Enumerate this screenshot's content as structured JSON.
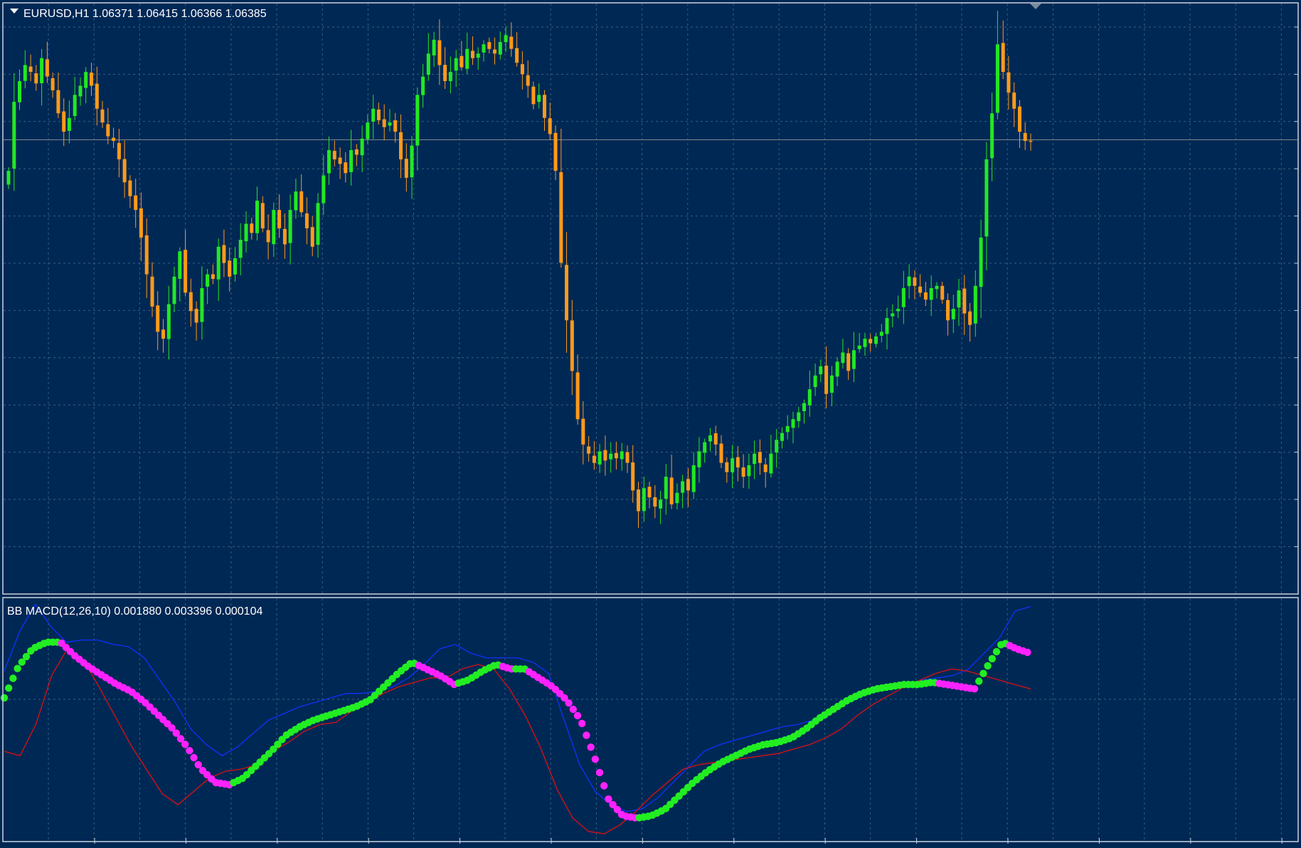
{
  "main_panel": {
    "symbol_line": "EURUSD,H1  1.06371 1.06415 1.06366 1.06385",
    "series": [
      "1.06371",
      "1.06415",
      "1.06366",
      "1.06385"
    ]
  },
  "indicator_panel": {
    "label": "BB MACD(12,26,10) 0.001880 0.003396 0.000104"
  },
  "colors": {
    "background": "#002855",
    "grid": "#3a5f7a",
    "frame": "#c9d3dc",
    "bull_candle": "#22e822",
    "bear_candle": "#ff9a1a",
    "macd_up": "#22ee22",
    "macd_down": "#ff22ff",
    "upper_band": "#1030ff",
    "lower_band": "#dd1010",
    "current_price_line": "#7a8a8a",
    "text": "#ffffff"
  },
  "chart_data": [
    {
      "type": "candlestick",
      "symbol": "EURUSD",
      "timeframe": "H1",
      "last_ohlc": {
        "open": 1.06371,
        "high": 1.06415,
        "low": 1.06366,
        "close": 1.06385
      },
      "ylim": [
        1.0445,
        1.069
      ],
      "close": [
        1.0625,
        1.0655,
        1.0664,
        1.0671,
        1.0668,
        1.0663,
        1.0674,
        1.0666,
        1.066,
        1.065,
        1.0642,
        1.0648,
        1.0658,
        1.0662,
        1.0668,
        1.0662,
        1.0652,
        1.0646,
        1.064,
        1.0638,
        1.063,
        1.062,
        1.0614,
        1.0608,
        1.0596,
        1.058,
        1.0566,
        1.0555,
        1.0552,
        1.0567,
        1.0579,
        1.059,
        1.0572,
        1.0564,
        1.0559,
        1.0574,
        1.058,
        1.0578,
        1.0592,
        1.0585,
        1.0579,
        1.0587,
        1.0595,
        1.0602,
        1.0598,
        1.0612,
        1.06,
        1.0594,
        1.0608,
        1.06,
        1.0593,
        1.0608,
        1.0616,
        1.0607,
        1.06,
        1.0592,
        1.0611,
        1.0623,
        1.0634,
        1.063,
        1.0628,
        1.0624,
        1.0634,
        1.0632,
        1.0639,
        1.0646,
        1.0652,
        1.0647,
        1.0644,
        1.0646,
        1.0642,
        1.063,
        1.0622,
        1.0636,
        1.0658,
        1.0666,
        1.0676,
        1.0682,
        1.0671,
        1.0664,
        1.0668,
        1.0674,
        1.067,
        1.0678,
        1.0674,
        1.0676,
        1.068,
        1.0678,
        1.0676,
        1.0681,
        1.0684,
        1.0678,
        1.0672,
        1.0667,
        1.0662,
        1.0654,
        1.0658,
        1.0648,
        1.0641,
        1.0625,
        1.0585,
        1.056,
        1.0538,
        1.0517,
        1.0506,
        1.0502,
        1.0498,
        1.0503,
        1.0499,
        1.0502,
        1.05,
        1.0503,
        1.0498,
        1.0486,
        1.0477,
        1.0487,
        1.0483,
        1.0479,
        1.0482,
        1.0492,
        1.048,
        1.0485,
        1.049,
        1.0486,
        1.0497,
        1.0503,
        1.0507,
        1.051,
        1.0506,
        1.0498,
        1.0494,
        1.05,
        1.0496,
        1.0492,
        1.0497,
        1.0502,
        1.0498,
        1.0494,
        1.0502,
        1.0508,
        1.0511,
        1.0514,
        1.0517,
        1.052,
        1.0524,
        1.053,
        1.0536,
        1.054,
        1.0528,
        1.0536,
        1.0542,
        1.0546,
        1.0538,
        1.0547,
        1.0549,
        1.0552,
        1.055,
        1.0553,
        1.0555,
        1.0561,
        1.0563,
        1.0565,
        1.0574,
        1.0579,
        1.0575,
        1.0572,
        1.0569,
        1.0574,
        1.0575,
        1.0569,
        1.056,
        1.0565,
        1.0573,
        1.0563,
        1.0558,
        1.0575,
        1.0596,
        1.063,
        1.065,
        1.068,
        1.0668,
        1.0659,
        1.0652,
        1.0642,
        1.0638,
        1.0638
      ]
    },
    {
      "type": "line",
      "title": "BB MACD(12,26,10)",
      "values": {
        "macd": 0.00188,
        "upper_band": 0.003396,
        "lower_band": 0.000104
      },
      "ylim": [
        -0.0024,
        0.0076
      ],
      "series": [
        {
          "name": "",
          "role": "macd",
          "values": [
            0.0038,
            0.0052,
            0.006,
            0.0063,
            0.0063,
            0.0057,
            0.0052,
            0.0048,
            0.0044,
            0.0041,
            0.0036,
            0.003,
            0.0024,
            0.0016,
            0.0006,
            0.0,
            -0.0001,
            0.0002,
            0.0008,
            0.0014,
            0.0021,
            0.0025,
            0.0028,
            0.003,
            0.0032,
            0.0034,
            0.0037,
            0.0043,
            0.0049,
            0.0054,
            0.0051,
            0.0048,
            0.0044,
            0.0046,
            0.005,
            0.0053,
            0.0051,
            0.0051,
            0.0047,
            0.0043,
            0.0037,
            0.0028,
            0.0011,
            -0.0008,
            -0.0015,
            -0.0016,
            -0.0015,
            -0.0012,
            -0.0006,
            0.0,
            0.0005,
            0.0009,
            0.0012,
            0.0015,
            0.0017,
            0.0018,
            0.002,
            0.0024,
            0.0029,
            0.0033,
            0.0037,
            0.004,
            0.0042,
            0.0043,
            0.0044,
            0.0044,
            0.0045,
            0.0044,
            0.0043,
            0.0042,
            0.0053,
            0.0063,
            0.006,
            0.0058
          ]
        },
        {
          "name": "",
          "role": "upper_band",
          "values": [
            0.005,
            0.0068,
            0.008,
            0.007,
            0.0063,
            0.0064,
            0.0064,
            0.0062,
            0.0061,
            0.0056,
            0.0046,
            0.0036,
            0.0024,
            0.0017,
            0.0012,
            0.0016,
            0.0022,
            0.0028,
            0.0031,
            0.0034,
            0.0036,
            0.0038,
            0.004,
            0.004,
            0.0041,
            0.0043,
            0.0047,
            0.0053,
            0.006,
            0.0062,
            0.0058,
            0.0056,
            0.0056,
            0.0056,
            0.0054,
            0.0049,
            0.0028,
            0.0008,
            -0.0004,
            -0.001,
            -0.0013,
            -0.0012,
            -0.0007,
            0.0,
            0.0007,
            0.0014,
            0.0017,
            0.0019,
            0.0021,
            0.0023,
            0.0025,
            0.0026,
            0.0028,
            0.0031,
            0.0035,
            0.0038,
            0.0041,
            0.0043,
            0.0044,
            0.0046,
            0.0047,
            0.0048,
            0.0051,
            0.0058,
            0.0065,
            0.0077,
            0.0079
          ]
        },
        {
          "name": "",
          "role": "lower_band",
          "values": [
            0.0014,
            0.0012,
            0.0026,
            0.0048,
            0.006,
            0.0055,
            0.0043,
            0.003,
            0.0017,
            0.0006,
            -0.0005,
            -0.001,
            -0.0004,
            0.0002,
            0.0005,
            0.0006,
            0.0008,
            0.0014,
            0.0018,
            0.0023,
            0.0026,
            0.0027,
            0.0032,
            0.0036,
            0.004,
            0.0043,
            0.0045,
            0.0047,
            0.0047,
            0.0051,
            0.0053,
            0.0051,
            0.0042,
            0.003,
            0.0015,
            -0.0003,
            -0.0016,
            -0.0022,
            -0.0023,
            -0.0019,
            -0.0013,
            -0.0006,
            0.0,
            0.0006,
            0.0008,
            0.0009,
            0.001,
            0.0011,
            0.0012,
            0.0013,
            0.0015,
            0.0017,
            0.002,
            0.0024,
            0.003,
            0.0035,
            0.0039,
            0.0043,
            0.0046,
            0.0049,
            0.0051,
            0.005,
            0.0048,
            0.0046,
            0.0044,
            0.0042
          ]
        }
      ]
    }
  ]
}
